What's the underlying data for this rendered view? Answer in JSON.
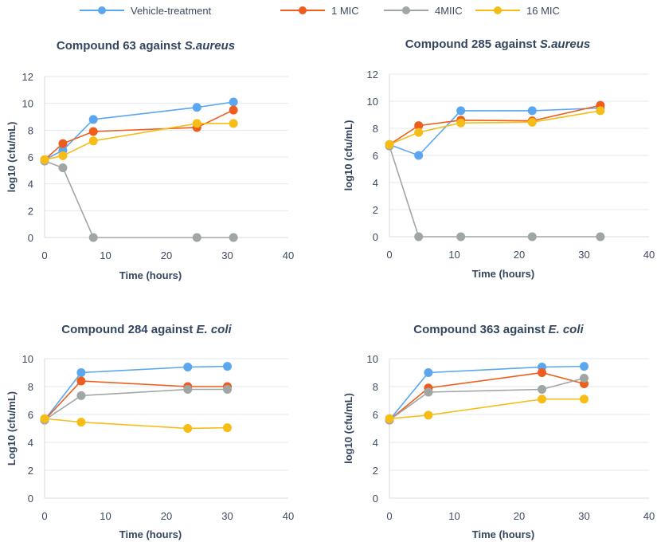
{
  "chart_data": {
    "legend": {
      "placement": "top",
      "entries": [
        {
          "name": "Vehicle-treatment",
          "color": "#5aa6ef"
        },
        {
          "name": "1 MIC",
          "color": "#ee5d1e"
        },
        {
          "name": "4MIIC",
          "color": "#a0a6a4"
        },
        {
          "name": "16 MIC",
          "color": "#f5bd16"
        }
      ]
    },
    "charts": [
      {
        "type": "line",
        "title_prefix": "Compound 63 against ",
        "title_species": "S.aureus",
        "xlabel": "Time (hours)",
        "ylabel": "log10 (cfu/mL)",
        "xlim": [
          0,
          40
        ],
        "ylim": [
          0,
          12
        ],
        "xticks": [
          "0",
          "10",
          "20",
          "30",
          "40"
        ],
        "yticks": [
          "0",
          "2",
          "4",
          "6",
          "8",
          "10",
          "12"
        ],
        "grid": true,
        "x": [
          0,
          3,
          8,
          25,
          31
        ],
        "series": [
          {
            "name": "Vehicle-treatment",
            "values": [
              5.8,
              6.5,
              8.8,
              9.7,
              10.1
            ]
          },
          {
            "name": "1 MIC",
            "values": [
              5.8,
              7.0,
              7.9,
              8.2,
              9.5
            ]
          },
          {
            "name": "4MIIC",
            "values": [
              5.7,
              5.2,
              0,
              0,
              0
            ]
          },
          {
            "name": "16 MIC",
            "values": [
              5.8,
              6.1,
              7.2,
              8.5,
              8.5
            ]
          }
        ]
      },
      {
        "type": "line",
        "title_prefix": "Compound 285 against ",
        "title_species": "S.aureus",
        "xlabel": "Time (hours)",
        "ylabel": "log10 (cfu/mL)",
        "xlim": [
          0,
          40
        ],
        "ylim": [
          0,
          12
        ],
        "xticks": [
          "0",
          "10",
          "20",
          "30",
          "40"
        ],
        "yticks": [
          "0",
          "2",
          "4",
          "6",
          "8",
          "10",
          "12"
        ],
        "grid": true,
        "x": [
          0,
          4.5,
          11,
          22,
          32.5
        ],
        "series": [
          {
            "name": "Vehicle-treatment",
            "values": [
              6.8,
              6.0,
              9.3,
              9.3,
              9.5
            ]
          },
          {
            "name": "1 MIC",
            "values": [
              6.8,
              8.2,
              8.6,
              8.55,
              9.7
            ]
          },
          {
            "name": "4MIIC",
            "values": [
              6.7,
              0,
              0,
              0,
              0
            ]
          },
          {
            "name": "16 MIC",
            "values": [
              6.8,
              7.7,
              8.4,
              8.45,
              9.3
            ]
          }
        ]
      },
      {
        "type": "line",
        "title_prefix": "Compound 284 against ",
        "title_species": "E. coli",
        "xlabel": "Time (hours)",
        "ylabel": "Log10 (cfu/mL)",
        "xlim": [
          0,
          40
        ],
        "ylim": [
          0,
          10
        ],
        "xticks": [
          "0",
          "10",
          "20",
          "30",
          "40"
        ],
        "yticks": [
          "0",
          "2",
          "4",
          "6",
          "8",
          "10"
        ],
        "grid": true,
        "x": [
          0,
          6,
          23.5,
          30
        ],
        "series": [
          {
            "name": "Vehicle-treatment",
            "values": [
              5.6,
              9.0,
              9.4,
              9.45
            ]
          },
          {
            "name": "1 MIC",
            "values": [
              5.6,
              8.4,
              8.0,
              8.0
            ]
          },
          {
            "name": "4MIIC",
            "values": [
              5.6,
              7.35,
              7.8,
              7.8
            ]
          },
          {
            "name": "16 MIC",
            "values": [
              5.7,
              5.45,
              5.0,
              5.05
            ]
          }
        ]
      },
      {
        "type": "line",
        "title_prefix": "Compound 363 against ",
        "title_species": "E. coli",
        "xlabel": "Time (hours)",
        "ylabel": "log10 (cfu/mL)",
        "xlim": [
          0,
          40
        ],
        "ylim": [
          0,
          10
        ],
        "xticks": [
          "0",
          "10",
          "20",
          "30",
          "40"
        ],
        "yticks": [
          "0",
          "2",
          "4",
          "6",
          "8",
          "10"
        ],
        "grid": true,
        "x": [
          0,
          6,
          23.5,
          30
        ],
        "series": [
          {
            "name": "Vehicle-treatment",
            "values": [
              5.6,
              9.0,
              9.4,
              9.45
            ]
          },
          {
            "name": "1 MIC",
            "values": [
              5.6,
              7.9,
              9.0,
              8.2
            ]
          },
          {
            "name": "4MIIC",
            "values": [
              5.6,
              7.6,
              7.8,
              8.6
            ]
          },
          {
            "name": "16 MIC",
            "values": [
              5.7,
              5.95,
              7.1,
              7.1
            ]
          }
        ]
      }
    ]
  }
}
